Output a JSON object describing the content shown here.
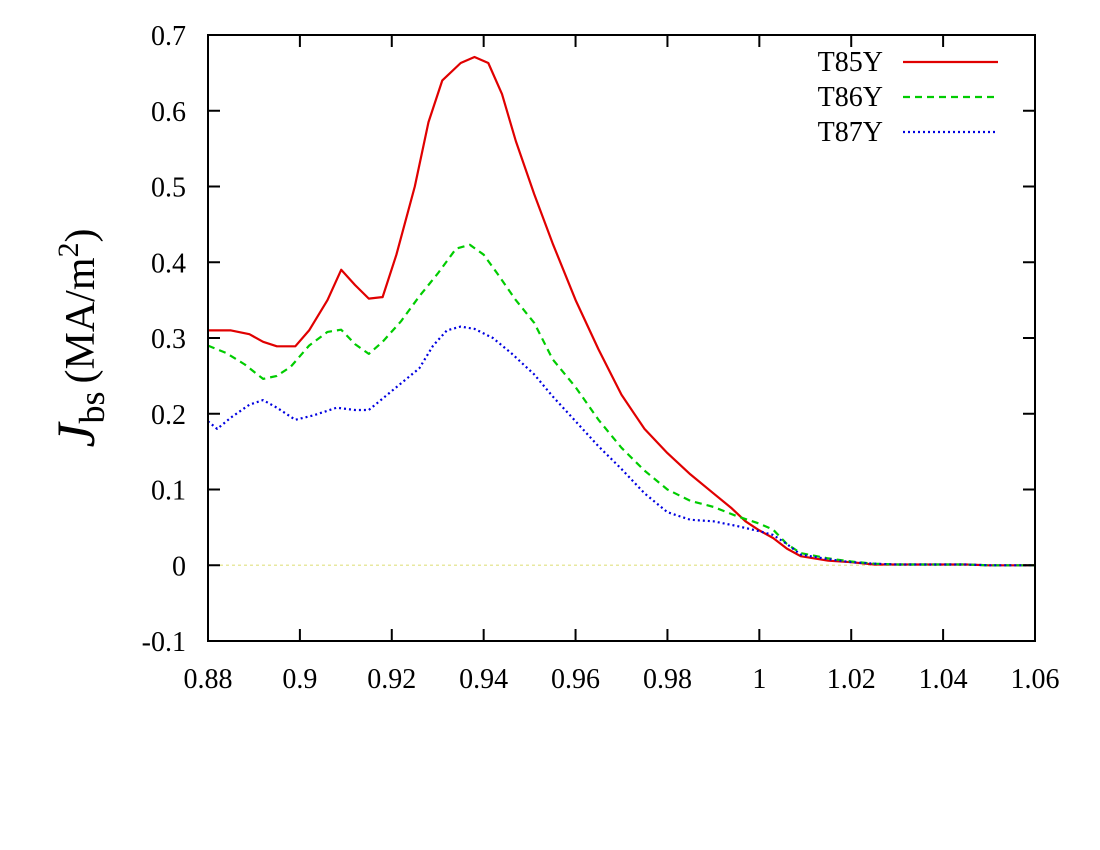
{
  "chart_data": {
    "type": "line",
    "xlabel": "",
    "ylabel": {
      "symbol": "J",
      "subscript": "bs",
      "unit": "(MA/m",
      "unit_exp": "2",
      "unit_close": ")"
    },
    "xlim": [
      0.88,
      1.06
    ],
    "ylim": [
      -0.1,
      0.7
    ],
    "x_ticks": [
      0.88,
      0.9,
      0.92,
      0.94,
      0.96,
      0.98,
      1.0,
      1.02,
      1.04,
      1.06
    ],
    "x_tick_labels": [
      "0.88",
      "0.9",
      "0.92",
      "0.94",
      "0.96",
      "0.98",
      "1",
      "1.02",
      "1.04",
      "1.06"
    ],
    "y_ticks": [
      -0.1,
      0,
      0.1,
      0.2,
      0.3,
      0.4,
      0.5,
      0.6,
      0.7
    ],
    "y_tick_labels": [
      "-0.1",
      "0",
      "0.1",
      "0.2",
      "0.3",
      "0.4",
      "0.5",
      "0.6",
      "0.7"
    ],
    "grid": false,
    "legend_position": "top-right",
    "zero_line_color": "#e8e8a0",
    "series": [
      {
        "name": "T85Y",
        "color": "#e00000",
        "dash": "solid",
        "points": [
          [
            0.88,
            0.31
          ],
          [
            0.885,
            0.31
          ],
          [
            0.889,
            0.305
          ],
          [
            0.892,
            0.295
          ],
          [
            0.895,
            0.289
          ],
          [
            0.899,
            0.289
          ],
          [
            0.902,
            0.31
          ],
          [
            0.906,
            0.35
          ],
          [
            0.909,
            0.39
          ],
          [
            0.912,
            0.37
          ],
          [
            0.915,
            0.352
          ],
          [
            0.918,
            0.354
          ],
          [
            0.921,
            0.41
          ],
          [
            0.925,
            0.5
          ],
          [
            0.928,
            0.585
          ],
          [
            0.931,
            0.64
          ],
          [
            0.935,
            0.663
          ],
          [
            0.938,
            0.671
          ],
          [
            0.941,
            0.663
          ],
          [
            0.944,
            0.622
          ],
          [
            0.947,
            0.56
          ],
          [
            0.951,
            0.49
          ],
          [
            0.955,
            0.425
          ],
          [
            0.96,
            0.35
          ],
          [
            0.965,
            0.285
          ],
          [
            0.97,
            0.225
          ],
          [
            0.975,
            0.18
          ],
          [
            0.98,
            0.148
          ],
          [
            0.985,
            0.12
          ],
          [
            0.99,
            0.095
          ],
          [
            0.994,
            0.075
          ],
          [
            0.997,
            0.058
          ],
          [
            1.0,
            0.046
          ],
          [
            1.003,
            0.036
          ],
          [
            1.006,
            0.022
          ],
          [
            1.009,
            0.012
          ],
          [
            1.015,
            0.006
          ],
          [
            1.02,
            0.004
          ],
          [
            1.025,
            0.001
          ],
          [
            1.03,
            0.001
          ],
          [
            1.04,
            0.001
          ],
          [
            1.045,
            0.001
          ],
          [
            1.05,
            0.0
          ],
          [
            1.06,
            0.0
          ]
        ]
      },
      {
        "name": "T86Y",
        "color": "#00cc00",
        "dash": "dashed",
        "points": [
          [
            0.88,
            0.29
          ],
          [
            0.884,
            0.28
          ],
          [
            0.888,
            0.265
          ],
          [
            0.892,
            0.246
          ],
          [
            0.895,
            0.25
          ],
          [
            0.898,
            0.262
          ],
          [
            0.902,
            0.29
          ],
          [
            0.906,
            0.308
          ],
          [
            0.909,
            0.311
          ],
          [
            0.912,
            0.292
          ],
          [
            0.915,
            0.279
          ],
          [
            0.918,
            0.295
          ],
          [
            0.922,
            0.322
          ],
          [
            0.926,
            0.355
          ],
          [
            0.93,
            0.385
          ],
          [
            0.934,
            0.418
          ],
          [
            0.937,
            0.423
          ],
          [
            0.94,
            0.41
          ],
          [
            0.943,
            0.385
          ],
          [
            0.947,
            0.35
          ],
          [
            0.951,
            0.32
          ],
          [
            0.955,
            0.272
          ],
          [
            0.96,
            0.235
          ],
          [
            0.965,
            0.192
          ],
          [
            0.97,
            0.155
          ],
          [
            0.975,
            0.125
          ],
          [
            0.98,
            0.1
          ],
          [
            0.985,
            0.085
          ],
          [
            0.99,
            0.077
          ],
          [
            0.995,
            0.065
          ],
          [
            1.0,
            0.055
          ],
          [
            1.003,
            0.047
          ],
          [
            1.006,
            0.028
          ],
          [
            1.009,
            0.016
          ],
          [
            1.015,
            0.009
          ],
          [
            1.02,
            0.005
          ],
          [
            1.025,
            0.002
          ],
          [
            1.03,
            0.001
          ],
          [
            1.04,
            0.001
          ],
          [
            1.045,
            0.001
          ],
          [
            1.05,
            0.0
          ],
          [
            1.06,
            0.0
          ]
        ]
      },
      {
        "name": "T87Y",
        "color": "#0000e0",
        "dash": "dotted",
        "points": [
          [
            0.88,
            0.19
          ],
          [
            0.882,
            0.18
          ],
          [
            0.885,
            0.195
          ],
          [
            0.889,
            0.212
          ],
          [
            0.892,
            0.218
          ],
          [
            0.895,
            0.208
          ],
          [
            0.899,
            0.192
          ],
          [
            0.903,
            0.198
          ],
          [
            0.908,
            0.208
          ],
          [
            0.912,
            0.205
          ],
          [
            0.915,
            0.205
          ],
          [
            0.918,
            0.22
          ],
          [
            0.922,
            0.24
          ],
          [
            0.926,
            0.26
          ],
          [
            0.929,
            0.29
          ],
          [
            0.932,
            0.31
          ],
          [
            0.935,
            0.315
          ],
          [
            0.938,
            0.312
          ],
          [
            0.942,
            0.3
          ],
          [
            0.946,
            0.28
          ],
          [
            0.951,
            0.252
          ],
          [
            0.955,
            0.223
          ],
          [
            0.96,
            0.19
          ],
          [
            0.965,
            0.157
          ],
          [
            0.97,
            0.127
          ],
          [
            0.975,
            0.095
          ],
          [
            0.98,
            0.07
          ],
          [
            0.985,
            0.06
          ],
          [
            0.99,
            0.058
          ],
          [
            0.995,
            0.052
          ],
          [
            1.0,
            0.045
          ],
          [
            1.003,
            0.04
          ],
          [
            1.006,
            0.028
          ],
          [
            1.009,
            0.014
          ],
          [
            1.015,
            0.008
          ],
          [
            1.02,
            0.004
          ],
          [
            1.025,
            0.002
          ],
          [
            1.03,
            0.001
          ],
          [
            1.04,
            0.001
          ],
          [
            1.045,
            0.001
          ],
          [
            1.05,
            0.0
          ],
          [
            1.06,
            0.0
          ]
        ]
      }
    ]
  }
}
